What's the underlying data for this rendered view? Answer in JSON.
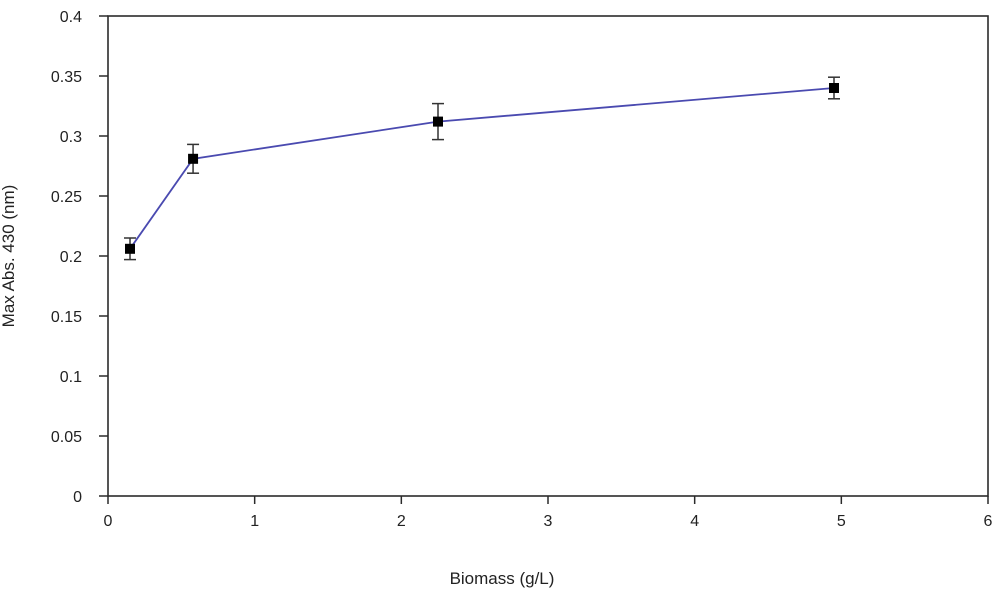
{
  "chart_data": {
    "type": "line",
    "xlabel": "Biomass (g/L)",
    "ylabel": "Max Abs. 430 (nm)",
    "xlim": [
      0,
      6
    ],
    "ylim": [
      0,
      0.4
    ],
    "x_ticks": [
      "0",
      "1",
      "2",
      "3",
      "4",
      "5",
      "6"
    ],
    "y_ticks": [
      "0",
      "0.05",
      "0.1",
      "0.15",
      "0.2",
      "0.25",
      "0.3",
      "0.35",
      "0.4"
    ],
    "grid": false,
    "legend": "none",
    "series": [
      {
        "x": [
          0.15,
          0.58,
          2.25,
          4.95
        ],
        "y": [
          0.206,
          0.281,
          0.312,
          0.34
        ],
        "error": [
          0.009,
          0.012,
          0.015,
          0.009
        ],
        "line_color": "#4a4ab0",
        "marker": "square",
        "marker_color": "#000000"
      }
    ]
  }
}
